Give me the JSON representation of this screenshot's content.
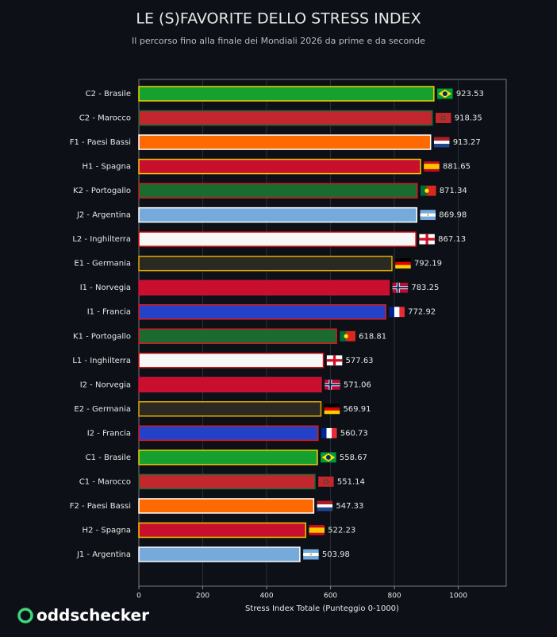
{
  "chart_data": {
    "type": "barh",
    "title": "LE (S)FAVORITE DELLO STRESS INDEX",
    "subtitle": "Il percorso fino alla finale dei Mondiali 2026 da prime e da seconde",
    "x_label": "Stress Index Totale (Punteggio 0-1000)",
    "categories": [
      "C2 - Brasile",
      "C2 - Marocco",
      "F1 - Paesi Bassi",
      "H1 - Spagna",
      "K2 - Portogallo",
      "J2 - Argentina",
      "L2 - Inghilterra",
      "E1 - Germania",
      "I1 - Norvegia",
      "I1 - Francia",
      "K1 - Portogallo",
      "L1 - Inghilterra",
      "I2 - Norvegia",
      "E2 - Germania",
      "I2 - Francia",
      "C1 - Brasile",
      "C1 - Marocco",
      "F2 - Paesi Bassi",
      "H2 - Spagna",
      "J1 - Argentina"
    ],
    "values": [
      923.53,
      918.35,
      913.27,
      881.65,
      871.34,
      869.98,
      867.13,
      792.19,
      783.25,
      772.92,
      618.81,
      577.63,
      571.06,
      569.91,
      560.73,
      558.67,
      551.14,
      547.33,
      522.23,
      503.98
    ],
    "colors": [
      "#16a02e",
      "#c1272d",
      "#ff6a00",
      "#c8102e",
      "#1a6b30",
      "#75aadb",
      "#f7f7f7",
      "#2b2a22",
      "#c8102e",
      "#2342c8",
      "#1a6b30",
      "#f7f7f7",
      "#c8102e",
      "#2b2a22",
      "#2342c8",
      "#16a02e",
      "#c1272d",
      "#ff6a00",
      "#c8102e",
      "#75aadb"
    ],
    "edgecolors": [
      "#f0d000",
      "#1b6b35",
      "#ffffff",
      "#f5c400",
      "#d41a1a",
      "#ffffff",
      "#d01010",
      "#e0a800",
      "#d0103a",
      "#e01818",
      "#d41a1a",
      "#d01010",
      "#d0103a",
      "#e0a800",
      "#e01818",
      "#f0d000",
      "#1b6b35",
      "#ffffff",
      "#f5c400",
      "#ffffff"
    ],
    "xlim": [
      0,
      1150
    ],
    "xticks": [
      0,
      200,
      400,
      600,
      800,
      1000
    ],
    "grid": true
  },
  "logo": "oddschecker"
}
